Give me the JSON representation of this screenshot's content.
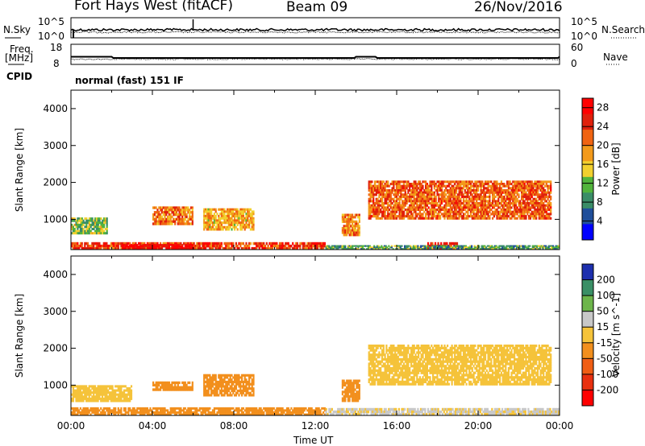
{
  "header": {
    "station": "Fort Hays West (fitACF)",
    "beam": "Beam 09",
    "date": "26/Nov/2016"
  },
  "noise_panel": {
    "left_label": "N.Sky",
    "right_label": "N.Search",
    "left_ticks": [
      "10^5",
      "10^0"
    ],
    "right_ticks": [
      "10^5",
      "10^0"
    ]
  },
  "freq_panel": {
    "left_label": "Freq.",
    "left_unit": "[MHz]",
    "right_label": "Nave",
    "left_ticks": [
      "18",
      "8"
    ],
    "right_ticks": [
      "60",
      "0"
    ]
  },
  "cpid": {
    "label": "CPID",
    "value": "normal (fast) 151 IF"
  },
  "x_axis": {
    "label": "Time UT",
    "ticks": [
      "00:00",
      "04:00",
      "08:00",
      "12:00",
      "16:00",
      "20:00",
      "00:00"
    ]
  },
  "colors": {
    "power_scale": [
      "#0000ff",
      "#1f4e9a",
      "#3a8d67",
      "#52b43c",
      "#f2d02e",
      "#f39a1b",
      "#f06412",
      "#e0200c",
      "#ff0000"
    ],
    "velocity_scale": [
      "#1d2fae",
      "#3a8f66",
      "#6db54b",
      "#c8c8c8",
      "#f5c33a",
      "#f28f1d",
      "#f05e14",
      "#e8300f",
      "#ff0000"
    ]
  },
  "chart_data": [
    {
      "type": "heatmap",
      "name": "power",
      "ylabel": "Slant Range [km]",
      "xlabel": "Time UT",
      "x_range_hours": [
        0,
        24
      ],
      "ylim": [
        180,
        4500
      ],
      "y_ticks": [
        1000,
        2000,
        3000,
        4000
      ],
      "colorbar_label": "Power [dB]",
      "colorbar_ticks": [
        4,
        8,
        12,
        16,
        20,
        24,
        28
      ],
      "colorbar_range": [
        0,
        30
      ],
      "regions": [
        {
          "t0": 0.0,
          "t1": 12.5,
          "r0": 180,
          "r1": 380,
          "value": 24
        },
        {
          "t0": 2.5,
          "t1": 6.0,
          "r0": 200,
          "r1": 330,
          "value": 29
        },
        {
          "t0": 0.0,
          "t1": 1.8,
          "r0": 600,
          "r1": 1050,
          "value": 12
        },
        {
          "t0": 4.0,
          "t1": 6.0,
          "r0": 850,
          "r1": 1350,
          "value": 20
        },
        {
          "t0": 6.5,
          "t1": 9.0,
          "r0": 700,
          "r1": 1300,
          "value": 18
        },
        {
          "t0": 13.3,
          "t1": 14.2,
          "r0": 550,
          "r1": 1150,
          "value": 20
        },
        {
          "t0": 14.6,
          "t1": 23.6,
          "r0": 1000,
          "r1": 2050,
          "value": 22
        },
        {
          "t0": 17.5,
          "t1": 19.0,
          "r0": 180,
          "r1": 380,
          "value": 25
        },
        {
          "t0": 12.5,
          "t1": 24.0,
          "r0": 180,
          "r1": 300,
          "value": 10
        }
      ]
    },
    {
      "type": "heatmap",
      "name": "velocity",
      "ylabel": "Slant Range [km]",
      "xlabel": "Time UT",
      "x_range_hours": [
        0,
        24
      ],
      "ylim": [
        180,
        4500
      ],
      "y_ticks": [
        1000,
        2000,
        3000,
        4000
      ],
      "colorbar_label": "Velocity [m s^-1]",
      "colorbar_ticks": [
        200,
        100,
        50,
        15,
        -15,
        -50,
        -100,
        -200
      ],
      "colorbar_range": [
        -250,
        250
      ],
      "regions": [
        {
          "t0": 0.0,
          "t1": 12.5,
          "r0": 180,
          "r1": 400,
          "value": -60
        },
        {
          "t0": 0.0,
          "t1": 3.0,
          "r0": 550,
          "r1": 1000,
          "value": 0
        },
        {
          "t0": 4.0,
          "t1": 6.0,
          "r0": 850,
          "r1": 1100,
          "value": -40
        },
        {
          "t0": 6.5,
          "t1": 9.0,
          "r0": 700,
          "r1": 1300,
          "value": -50
        },
        {
          "t0": 13.3,
          "t1": 14.2,
          "r0": 550,
          "r1": 1150,
          "value": -60
        },
        {
          "t0": 14.6,
          "t1": 23.6,
          "r0": 1000,
          "r1": 2100,
          "value": 0
        },
        {
          "t0": 12.5,
          "t1": 24.0,
          "r0": 180,
          "r1": 380,
          "value": 30
        }
      ]
    }
  ]
}
